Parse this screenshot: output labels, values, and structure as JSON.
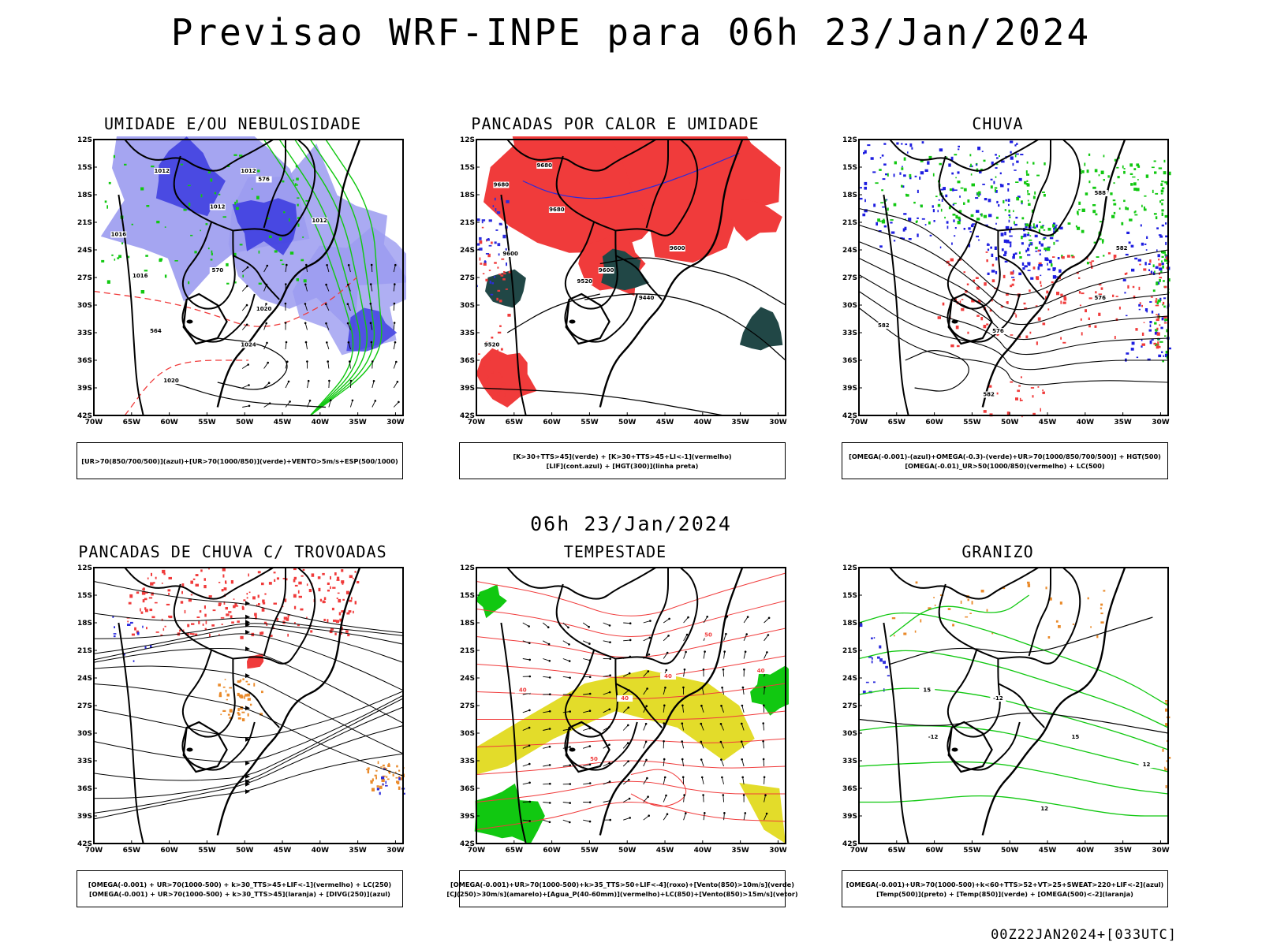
{
  "title": "Previsao WRF-INPE  para 06h 23/Jan/2024",
  "mid_date": "06h 23/Jan/2024",
  "run_id": "00Z22JAN2024+[033UTC]",
  "axes": {
    "lat_labels": [
      "12S",
      "15S",
      "18S",
      "21S",
      "24S",
      "27S",
      "30S",
      "33S",
      "36S",
      "39S",
      "42S"
    ],
    "lon_labels": [
      "70W",
      "65W",
      "60W",
      "55W",
      "50W",
      "45W",
      "40W",
      "35W",
      "30W"
    ]
  },
  "panels": [
    {
      "title": "UMIDADE E/OU NEBULOSIDADE",
      "legend": [
        "[UR>70(850/700/500)](azul)+[UR>70(1000/850)](verde)+VENTO>5m/s+ESP(500/1000)"
      ],
      "contour_labels": [
        "1012",
        "1012",
        "1012",
        "1016",
        "1020",
        "1024",
        "1020",
        "1016",
        "1012",
        "576",
        "570",
        "564"
      ]
    },
    {
      "title": "PANCADAS POR CALOR E UMIDADE",
      "legend": [
        "[K>30+TTS>45](verde) + [K>30+TTS>45+LI<-1](vermelho)",
        "[LIF](cont.azul) + [HGT(300)](linha preta)"
      ],
      "contour_labels": [
        "9680",
        "9680",
        "9680",
        "9600",
        "9600",
        "9600",
        "9520",
        "9520",
        "9440"
      ]
    },
    {
      "title": "CHUVA",
      "legend": [
        "[OMEGA(-0.001)-(azul)+OMEGA(-0.3)-(verde)+UR>70(1000/850/700/500)] + HGT(500)",
        "[OMEGA(-0.01)_UR>50(1000/850)(vermelho) + LC(500)"
      ],
      "contour_labels": [
        "582",
        "576",
        "576",
        "582",
        "582",
        "588"
      ]
    },
    {
      "title": "PANCADAS DE CHUVA C/ TROVOADAS",
      "legend": [
        "[OMEGA(-0.001) + UR>70(1000-500) + k>30_TTS>45+LIF<-1](vermelho) + LC(250)",
        "[OMEGA(-0.001) + UR>70(1000-500) + k>30_TTS>45](laranja) + [DIVG(250)](azul)"
      ],
      "contour_labels": []
    },
    {
      "title": "TEMPESTADE",
      "legend": [
        "[OMEGA(-0.001)+UR>70(1000-500)+k>35_TTS>50+LIF<-4](roxo)+[Vento(850)>10m/s](verde)",
        "[CJ(250)>30m/s](amarelo)+[Agua_P(40-60mm)](vermelho)+LC(850)+[Vento(850)>15m/s](vetor)"
      ],
      "contour_labels": [
        "40",
        "50",
        "50",
        "40",
        "40",
        "40"
      ]
    },
    {
      "title": "GRANIZO",
      "legend": [
        "[OMEGA(-0.001)+UR>70(1000-500)+k<60+TTS>52+VT>25+SWEAT>220+LIF<-2](azul)",
        "[Temp(500)](preto) + [Temp(850)](verde) + [OMEGA(500)<-2](laranja)"
      ],
      "contour_labels": [
        "-12",
        "-12",
        "12",
        "15",
        "15",
        "12"
      ]
    }
  ],
  "colors": {
    "humid_blue": "#9b9bf0",
    "humid_dark_blue": "#3a3adf",
    "green": "#11c811",
    "red": "#f03b3b",
    "dark_teal": "#214746",
    "yellow": "#e3dc2a",
    "orange": "#ea8a2a",
    "black": "#000000"
  }
}
